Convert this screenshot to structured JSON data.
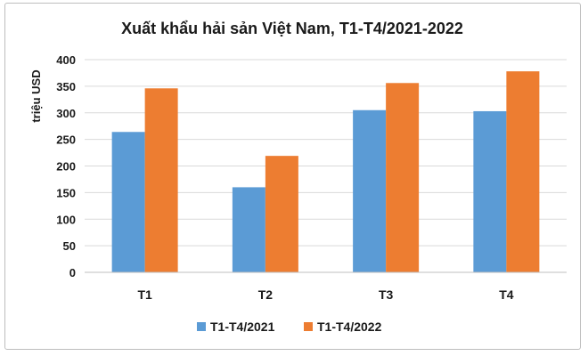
{
  "chart_data": {
    "type": "bar",
    "title": "Xuất khẩu hải sản Việt Nam, T1-T4/2021-2022",
    "xlabel": "",
    "ylabel": "triệu USD",
    "categories": [
      "T1",
      "T2",
      "T3",
      "T4"
    ],
    "series": [
      {
        "name": "T1-T4/2021",
        "color": "#5b9bd5",
        "values": [
          264,
          160,
          305,
          303
        ]
      },
      {
        "name": "T1-T4/2022",
        "color": "#ed7d31",
        "values": [
          346,
          219,
          356,
          378
        ]
      }
    ],
    "ylim": [
      0,
      400
    ],
    "yticks": [
      "0",
      "50",
      "100",
      "150",
      "200",
      "250",
      "300",
      "350",
      "400"
    ],
    "grid": true,
    "legend": "bottom"
  }
}
